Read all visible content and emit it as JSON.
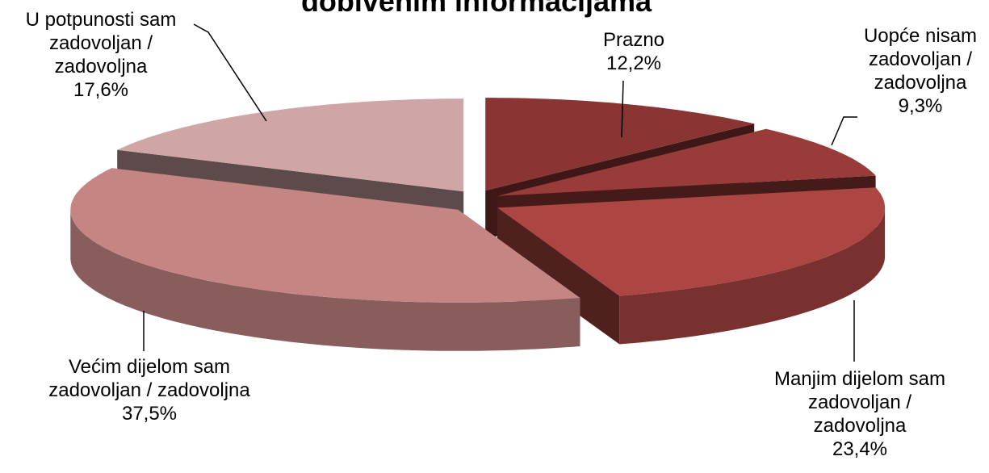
{
  "chart_data": {
    "type": "pie3d",
    "title": "dobivenim informacijama",
    "categories": [
      "Prazno",
      "Uopće nisam zadovoljan / zadovoljna",
      "Manjim dijelom sam zadovoljan / zadovoljna",
      "Većim dijelom sam zadovoljan / zadovoljna",
      "U potpunosti sam zadovoljan / zadovoljna"
    ],
    "values": [
      12.2,
      9.3,
      23.4,
      37.5,
      17.6
    ],
    "value_labels": [
      "12,2%",
      "9,3%",
      "23,4%",
      "37,5%",
      "17,6%"
    ],
    "colors": [
      "#8a3434",
      "#993b39",
      "#ad4643",
      "#c48583",
      "#cfa5a6"
    ]
  }
}
